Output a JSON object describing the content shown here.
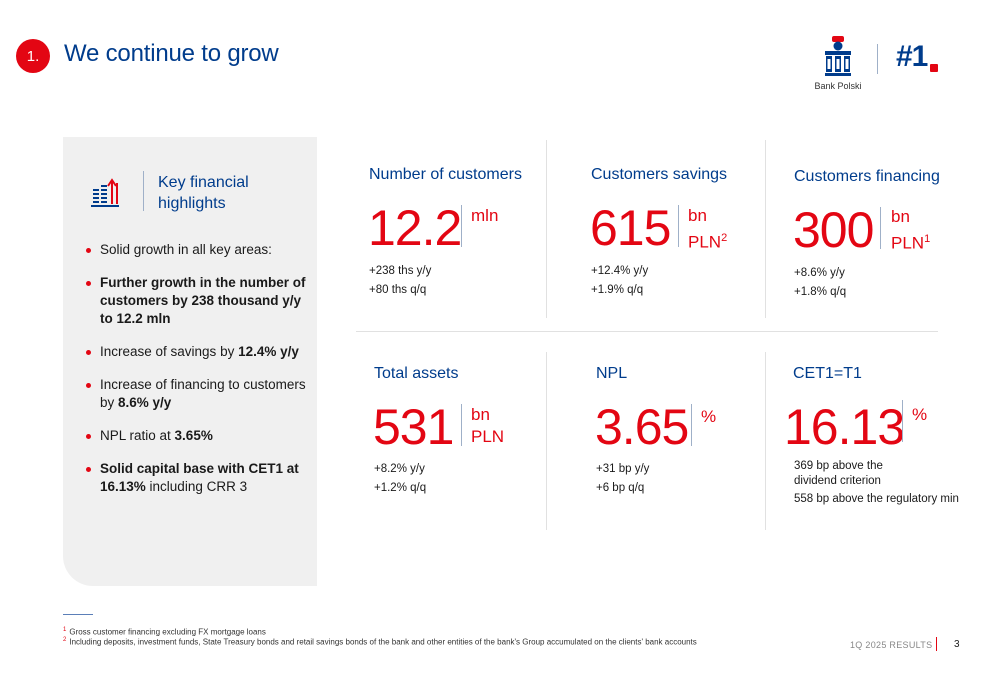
{
  "header": {
    "section_number": "1.",
    "title": "We continue to grow",
    "logo_caption": "Bank Polski",
    "rank": "#1"
  },
  "highlights": {
    "title_line1": "Key financial",
    "title_line2": "highlights",
    "items": [
      {
        "text": "Solid growth in all key areas:"
      },
      {
        "text": "Further growth in the number of customers by 238 thousand y/y to 12.2 mln"
      },
      {
        "text_before": "Increase of savings by ",
        "text_bold": "12.4% y/y"
      },
      {
        "text_before": "Increase of financing to customers by ",
        "text_bold": "8.6% y/y"
      },
      {
        "text_before": "NPL ratio at ",
        "text_bold": "3.65%"
      },
      {
        "text_bold": "Solid capital base with CET1 at 16.13%",
        "text_after": " including CRR 3"
      }
    ]
  },
  "metrics": {
    "customers": {
      "title": "Number of customers",
      "value": "12.2",
      "unit": "mln",
      "lines": [
        "+238 ths y/y",
        "+80 ths q/q"
      ]
    },
    "savings": {
      "title": "Customers savings",
      "value": "615",
      "unit_line1": "bn",
      "unit_line2": "PLN",
      "footnote_ref": "2",
      "lines": [
        "+12.4% y/y",
        "+1.9% q/q"
      ]
    },
    "financing": {
      "title": "Customers financing",
      "value": "300",
      "unit_line1": "bn",
      "unit_line2": "PLN",
      "footnote_ref": "1",
      "lines": [
        "+8.6% y/y",
        "+1.8% q/q"
      ]
    },
    "assets": {
      "title": "Total assets",
      "value": "531",
      "unit_line1": "bn",
      "unit_line2": "PLN",
      "lines": [
        "+8.2% y/y",
        "+1.2% q/q"
      ]
    },
    "npl": {
      "title": "NPL",
      "value": "3.65",
      "unit": "%",
      "lines": [
        "+31 bp y/y",
        "+6 bp q/q"
      ]
    },
    "cet1": {
      "title": "CET1=T1",
      "value": "16.13",
      "unit": "%",
      "lines": [
        "369 bp above the dividend criterion",
        "558 bp above the regulatory min"
      ]
    }
  },
  "footnotes": [
    {
      "num": "1",
      "text": "Gross customer financing excluding FX mortgage loans"
    },
    {
      "num": "2",
      "text": "Including deposits, investment funds, State Treasury bonds and retail savings bonds of the bank and other entities of the bank's Group accumulated on the clients' bank accounts"
    }
  ],
  "footer": {
    "report_label": "1Q 2025 RESULTS",
    "page_number": "3"
  },
  "colors": {
    "brand_blue": "#003c8c",
    "accent_red": "#e30613",
    "panel_grey": "#f0f0f0"
  },
  "icons": {
    "highlights": "bar-chart-arrow-up-icon",
    "logo": "pko-bank-logo"
  }
}
